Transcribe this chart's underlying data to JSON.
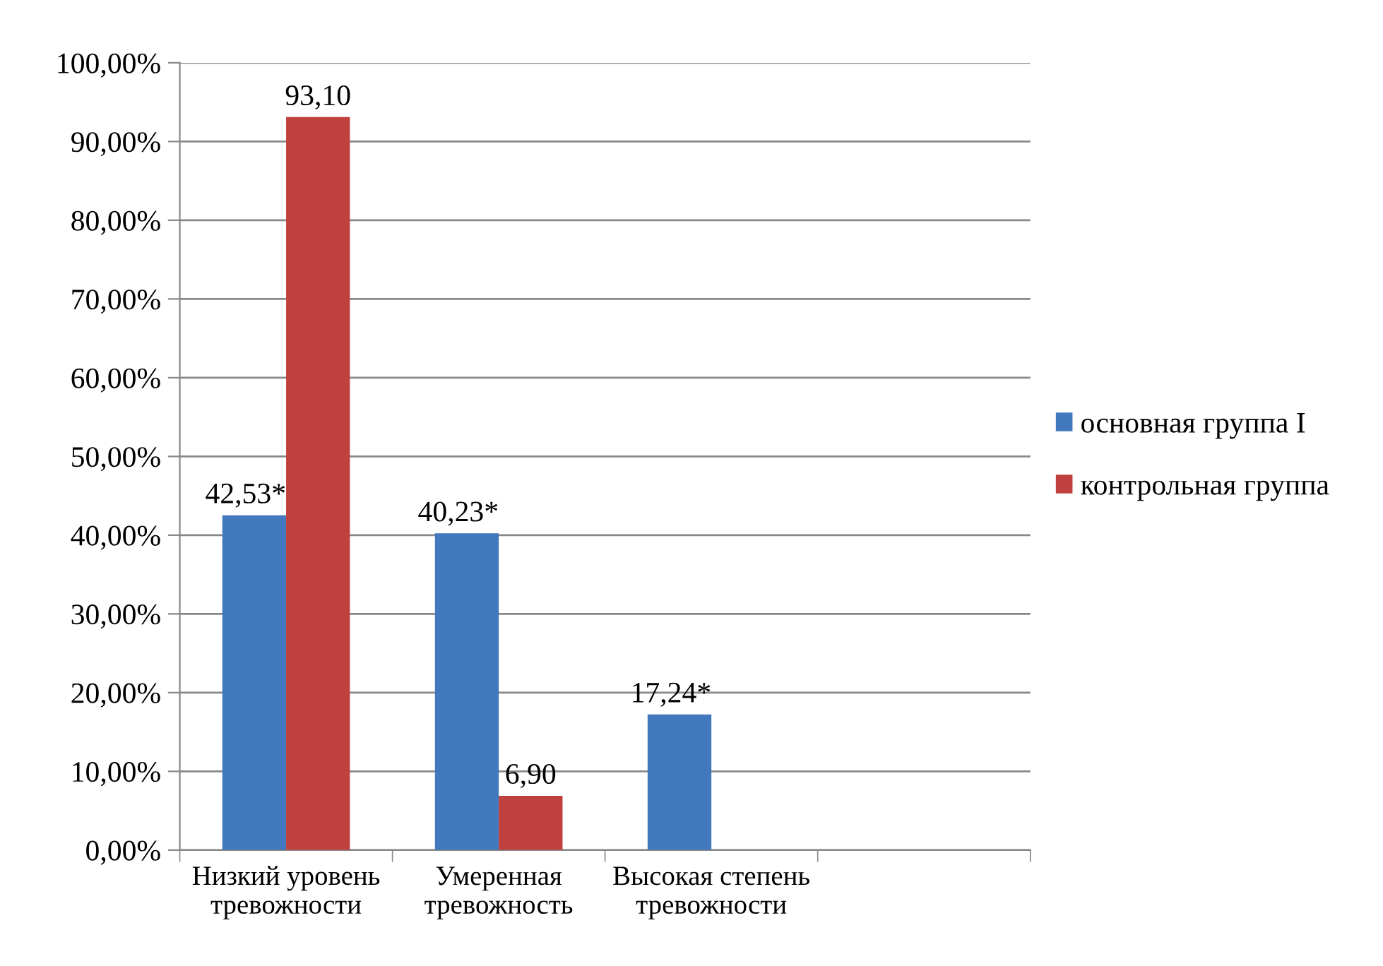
{
  "chart_data": {
    "type": "bar",
    "categories": [
      "Низкий уровень\nтревожности",
      "Умеренная\nтревожность",
      "Высокая степень\nтревожности",
      null
    ],
    "series": [
      {
        "name": "основная группа I",
        "color": "#4178be",
        "values": [
          42.53,
          40.23,
          17.24,
          null
        ],
        "value_labels": [
          "42,53*",
          "40,23*",
          "17,24*",
          null
        ]
      },
      {
        "name": "контрольная группа",
        "color": "#c0403e",
        "values": [
          93.1,
          6.9,
          0,
          null
        ],
        "value_labels": [
          "93,10",
          "6,90",
          null,
          null
        ]
      }
    ],
    "ylim": [
      0,
      100
    ],
    "yticks": [
      {
        "value": 0,
        "label": "0,00%"
      },
      {
        "value": 10,
        "label": "10,00%"
      },
      {
        "value": 20,
        "label": "20,00%"
      },
      {
        "value": 30,
        "label": "30,00%"
      },
      {
        "value": 40,
        "label": "40,00%"
      },
      {
        "value": 50,
        "label": "50,00%"
      },
      {
        "value": 60,
        "label": "60,00%"
      },
      {
        "value": 70,
        "label": "70,00%"
      },
      {
        "value": 80,
        "label": "80,00%"
      },
      {
        "value": 90,
        "label": "90,00%"
      },
      {
        "value": 100,
        "label": "100,00%"
      }
    ],
    "grid": "y",
    "legend": "right"
  }
}
